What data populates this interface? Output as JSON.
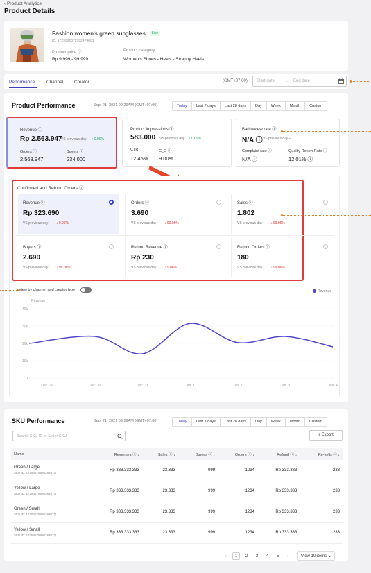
{
  "breadcrumb": "‹ Product Analytics",
  "page_title": "Product Details",
  "product": {
    "name": "Fashion women's green sunglasses",
    "status": "Live",
    "id": "ID: 1729382372782474801",
    "price_label": "Product price ⓘ",
    "price": "Rp 9.999 - 99.999",
    "category_label": "Product category",
    "category": "Women's Shoes - Heels - Strappy Heels"
  },
  "tabs": [
    "Performance",
    "Channel",
    "Creator"
  ],
  "timezone": "(GMT+07:00)",
  "date_range": {
    "start": "Start date",
    "sep": "→",
    "end": "End date"
  },
  "performance": {
    "title": "Product Performance",
    "timestamp": "Sept 21, 2021 09:29AM (GMT+07:00)",
    "periods": [
      "Today",
      "Last 7 days",
      "Last 28 days",
      "Day",
      "Week",
      "Month",
      "Custom"
    ],
    "revenue": {
      "label": "Revenue ⓘ",
      "value": "Rp 2.563.947",
      "vs": "VS previous day",
      "change": "↑ 0.09%",
      "orders_label": "Orders ⓘ",
      "orders": "2.563.947",
      "buyers_label": "Buyers ⓘ",
      "buyers": "234.000"
    },
    "impressions": {
      "label": "Product Impressions ⓘ",
      "value": "583.000",
      "vs": "VS previous day",
      "change": "↑ 0.09%",
      "ctr_label": "CTR",
      "ctr": "12.45%",
      "co_label": "C_O ⓘ",
      "co": "9.00%"
    },
    "bad_review": {
      "label": "Bad review rate ⓘ",
      "value": "N/A ⓘ",
      "vs": "VS previous day --",
      "complaint_label": "Complaint rate ⓘ",
      "complaint": "N/A ⓘ",
      "return_label": "Quality Return Rate ⓘ",
      "return": "12.01% ⓘ"
    }
  },
  "orders_section": {
    "title": "Confirmed and Refund Orders ⓘ",
    "cells": [
      {
        "label": "Revenue ⓘ",
        "value": "Rp 323.690",
        "vs": "VS previous day",
        "change": "↓ 9.06%"
      },
      {
        "label": "Orders ⓘ",
        "value": "3.690",
        "vs": "VS previous day",
        "change": "↓ 99.06%"
      },
      {
        "label": "Sales ⓘ",
        "value": "1.802",
        "vs": "VS previous day",
        "change": "↓ 99.06%"
      },
      {
        "label": "Buyers ⓘ",
        "value": "2.690",
        "vs": "VS previous day",
        "change": "↓ 99.06%"
      },
      {
        "label": "Refund Revenue ⓘ",
        "value": "Rp 230",
        "vs": "VS previous day",
        "change": "↓ 9.06%"
      },
      {
        "label": "Refund Orders ⓘ",
        "value": "180",
        "vs": "VS previous day",
        "change": "↓ 99.06%"
      }
    ]
  },
  "view_toggle": "View by channel and creator type",
  "chart_data": {
    "type": "line",
    "ylabel": "Revenue",
    "yticks": [
      "0",
      "10k",
      "20k",
      "30k",
      "40k"
    ],
    "ylim": [
      0,
      40000
    ],
    "categories": [
      "Dec. 29",
      "Dec. 30",
      "Dec. 31",
      "Jan. 1",
      "Jan. 2",
      "Jan. 3",
      "Jan. 4"
    ],
    "series": [
      {
        "name": "Revenue",
        "values": [
          20000,
          24000,
          14000,
          31500,
          20500,
          24000,
          18000
        ]
      }
    ],
    "legend": "top-right",
    "color": "#5046c8"
  },
  "sku": {
    "title": "SKU Performance",
    "timestamp": "Sept 21, 2021 09:29AM (GMT+07:00)",
    "periods": [
      "Today",
      "Last 7 days",
      "Last 28 days",
      "Day",
      "Week",
      "Month",
      "Custom"
    ],
    "search_placeholder": "Search SKU ID or Seller SKU",
    "export": "⤓ Export",
    "columns": [
      "Name",
      "Revenues ⓘ ↕",
      "Sales ⓘ ↓",
      "Buyers ⓘ ↕",
      "Orders ⓘ ↕",
      "Refund ⓘ ↕",
      "Re-sells ⓘ ↕"
    ],
    "rows": [
      {
        "name": "Green / Large",
        "skuid": "SKU ID: 1728467898028397⊡",
        "revenue": "Rp 333.333.333",
        "sales": "23.333",
        "buyers": "999",
        "orders": "1234",
        "refund": "Rp 333.333",
        "resells": "233"
      },
      {
        "name": "Yellow / Large",
        "skuid": "SKU ID: 1728467898028397⊡",
        "revenue": "Rp 333.333.333",
        "sales": "23.333",
        "buyers": "999",
        "orders": "1234",
        "refund": "Rp 333.333",
        "resells": "233"
      },
      {
        "name": "Green / Small",
        "skuid": "SKU ID: 1728467898028397⊡",
        "revenue": "Rp 333.333.333",
        "sales": "23.333",
        "buyers": "999",
        "orders": "1234",
        "refund": "Rp 333.333",
        "resells": "233"
      },
      {
        "name": "Yellow / Small",
        "skuid": "SKU ID: 1728467898028397⊡",
        "revenue": "Rp 333.333.333",
        "sales": "23.333",
        "buyers": "999",
        "orders": "1234",
        "refund": "Rp 333.333",
        "resells": "233"
      }
    ]
  },
  "pagination": {
    "pages": [
      "1",
      "2",
      "3",
      "4",
      "5"
    ],
    "prev": "‹",
    "next": "›",
    "per_page": "View 10 items ⌄"
  }
}
